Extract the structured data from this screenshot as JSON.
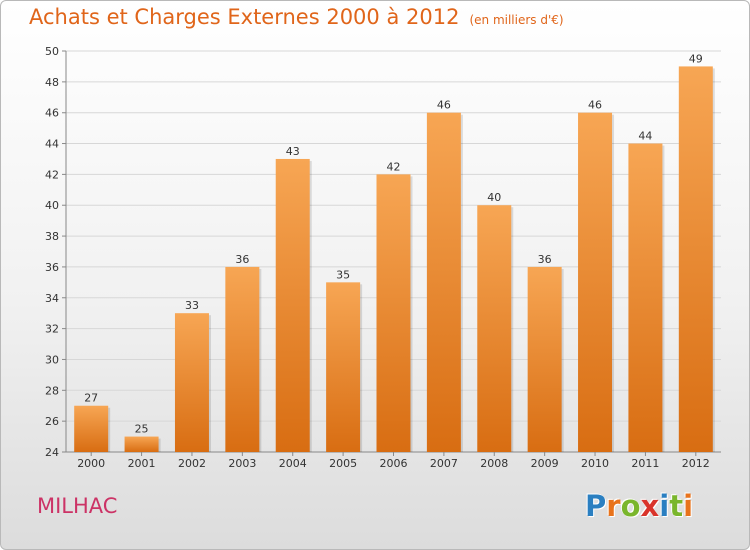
{
  "title": {
    "main": "Achats et Charges Externes 2000 à 2012",
    "sub": "(en milliers d'€)"
  },
  "location": "MILHAC",
  "logo": {
    "text": "Proxiti",
    "letter_colors": [
      "#2a7fc1",
      "#e8731c",
      "#7ab62c",
      "#d9342b",
      "#2a7fc1",
      "#7ab62c",
      "#e8731c"
    ]
  },
  "colors": {
    "bar_top": "#f7a654",
    "bar_bottom": "#d86d12",
    "title": "#e0651a",
    "location": "#cc3366",
    "grid": "#d7d7d7"
  },
  "chart_data": {
    "type": "bar",
    "categories": [
      "2000",
      "2001",
      "2002",
      "2003",
      "2004",
      "2005",
      "2006",
      "2007",
      "2008",
      "2009",
      "2010",
      "2011",
      "2012"
    ],
    "values": [
      27,
      25,
      33,
      36,
      43,
      35,
      42,
      46,
      40,
      36,
      46,
      44,
      49
    ],
    "ylim": [
      24,
      50
    ],
    "yticks": [
      24,
      26,
      28,
      30,
      32,
      34,
      36,
      38,
      40,
      42,
      44,
      46,
      48,
      50
    ],
    "grid": true,
    "data_labels": true
  }
}
